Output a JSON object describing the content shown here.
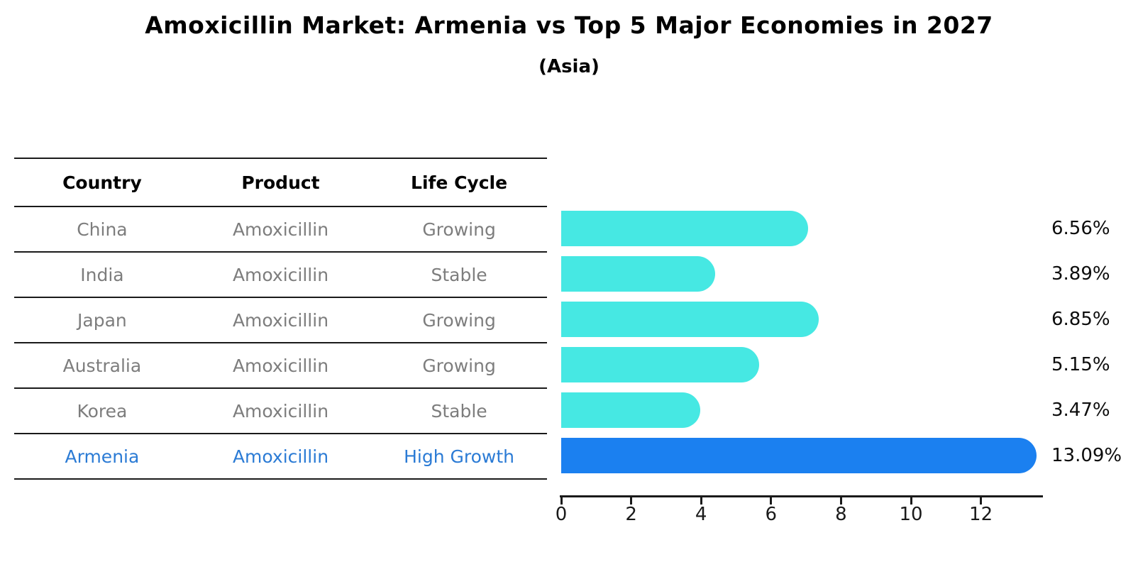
{
  "title": "Amoxicillin Market: Armenia vs Top 5 Major Economies in 2027",
  "subtitle": "(Asia)",
  "table": {
    "headers": [
      "Country",
      "Product",
      "Life Cycle"
    ],
    "rows": [
      {
        "country": "China",
        "product": "Amoxicillin",
        "life_cycle": "Growing",
        "highlight": false
      },
      {
        "country": "India",
        "product": "Amoxicillin",
        "life_cycle": "Stable",
        "highlight": false
      },
      {
        "country": "Japan",
        "product": "Amoxicillin",
        "life_cycle": "Growing",
        "highlight": false
      },
      {
        "country": "Australia",
        "product": "Amoxicillin",
        "life_cycle": "Growing",
        "highlight": false
      },
      {
        "country": "Korea",
        "product": "Amoxicillin",
        "life_cycle": "Stable",
        "highlight": false
      },
      {
        "country": "Armenia",
        "product": "Amoxicillin",
        "life_cycle": "High Growth",
        "highlight": true
      }
    ]
  },
  "chart_data": {
    "type": "bar",
    "orientation": "horizontal",
    "title": "Amoxicillin Market: Armenia vs Top 5 Major Economies in 2027",
    "subtitle": "(Asia)",
    "categories": [
      "China",
      "India",
      "Japan",
      "Australia",
      "Korea",
      "Armenia"
    ],
    "values": [
      6.56,
      3.89,
      6.85,
      5.15,
      3.47,
      13.09
    ],
    "value_labels": [
      "6.56%",
      "3.89%",
      "6.85%",
      "5.15%",
      "3.47%",
      "13.09%"
    ],
    "xticks": [
      0,
      2,
      4,
      6,
      8,
      10,
      12
    ],
    "xlim": [
      0,
      13.77
    ],
    "grid": false,
    "legend": false,
    "bar_color": "#46E8E3",
    "highlight_index": 5,
    "highlight_color": "#1B80F0",
    "highlight_border_style": "dotted",
    "highlight_text_color": "#2B7BD5",
    "axis_color": "#1a1a1a",
    "label_color": "#0d0d0d"
  }
}
